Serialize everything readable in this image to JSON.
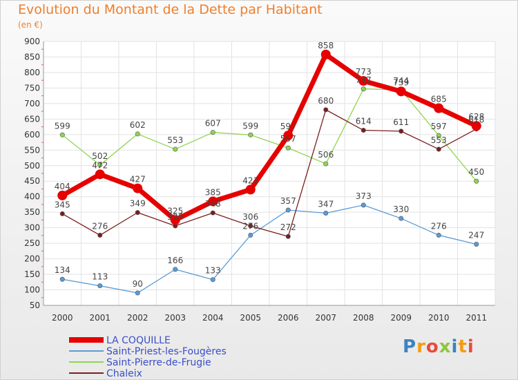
{
  "title": "Evolution du Montant de la Dette par Habitant",
  "subtitle": "(en €)",
  "logo": {
    "text": "Proxiti",
    "colors": [
      "#3b82c4",
      "#f39c12",
      "#e74c3c",
      "#8dc63f",
      "#3b82c4",
      "#f39c12",
      "#e74c3c"
    ]
  },
  "chart_data": {
    "type": "line",
    "title": "Evolution du Montant de la Dette par Habitant",
    "subtitle": "(en €)",
    "xlabel": "",
    "ylabel": "",
    "categories": [
      "2000",
      "2001",
      "2002",
      "2003",
      "2004",
      "2005",
      "2006",
      "2007",
      "2008",
      "2009",
      "2010",
      "2011"
    ],
    "ylim": [
      50,
      900
    ],
    "yticks": [
      50,
      100,
      150,
      200,
      250,
      300,
      350,
      400,
      450,
      500,
      550,
      600,
      650,
      700,
      750,
      800,
      850,
      900
    ],
    "grid": true,
    "legend_position": "bottom-left",
    "series": [
      {
        "name": "Saint-Priest-les-Fougères",
        "color": "#5b9bd5",
        "values": [
          134,
          113,
          90,
          166,
          133,
          276,
          357,
          347,
          373,
          330,
          276,
          247
        ]
      },
      {
        "name": "Saint-Pierre-de-Frugie",
        "color": "#8fd44f",
        "values": [
          599,
          502,
          602,
          553,
          607,
          599,
          557,
          506,
          747,
          744,
          597,
          450
        ]
      },
      {
        "name": "Chaleix",
        "color": "#7a1e1e",
        "values": [
          345,
          276,
          349,
          306,
          348,
          306,
          272,
          680,
          614,
          611,
          553,
          618
        ]
      },
      {
        "name": "LA COQUILLE",
        "color": "#e60000",
        "values": [
          404,
          472,
          427,
          325,
          385,
          423,
          597,
          858,
          773,
          739,
          685,
          628
        ]
      }
    ],
    "legend_order": [
      "LA COQUILLE",
      "Saint-Priest-les-Fougères",
      "Saint-Pierre-de-Frugie",
      "Chaleix"
    ]
  }
}
